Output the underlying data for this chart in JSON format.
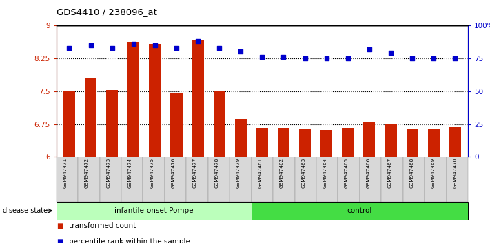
{
  "title": "GDS4410 / 238096_at",
  "categories": [
    "GSM947471",
    "GSM947472",
    "GSM947473",
    "GSM947474",
    "GSM947475",
    "GSM947476",
    "GSM947477",
    "GSM947478",
    "GSM947479",
    "GSM947461",
    "GSM947462",
    "GSM947463",
    "GSM947464",
    "GSM947465",
    "GSM947466",
    "GSM947467",
    "GSM947468",
    "GSM947469",
    "GSM947470"
  ],
  "bar_values": [
    7.5,
    7.8,
    7.52,
    8.62,
    8.58,
    7.46,
    8.68,
    7.5,
    6.85,
    6.65,
    6.65,
    6.63,
    6.62,
    6.65,
    6.8,
    6.75,
    6.63,
    6.63,
    6.68
  ],
  "dot_values": [
    83,
    85,
    83,
    86,
    85,
    83,
    88,
    83,
    80,
    76,
    76,
    75,
    75,
    75,
    82,
    79,
    75,
    75,
    75
  ],
  "bar_color": "#cc2200",
  "dot_color": "#0000cc",
  "ylim_left": [
    6,
    9
  ],
  "ylim_right": [
    0,
    100
  ],
  "yticks_left": [
    6,
    6.75,
    7.5,
    8.25,
    9
  ],
  "yticks_right": [
    0,
    25,
    50,
    75,
    100
  ],
  "ytick_labels_left": [
    "6",
    "6.75",
    "7.5",
    "8.25",
    "9"
  ],
  "ytick_labels_right": [
    "0",
    "25",
    "50",
    "75",
    "100%"
  ],
  "grid_lines": [
    6.75,
    7.5,
    8.25
  ],
  "group1_label": "infantile-onset Pompe",
  "group2_label": "control",
  "group1_count": 9,
  "group2_count": 10,
  "disease_state_label": "disease state",
  "legend1_label": "transformed count",
  "legend2_label": "percentile rank within the sample",
  "group1_color": "#bbffbb",
  "group2_color": "#44dd44",
  "tickbox_color": "#d8d8d8",
  "bar_bottom": 6.0
}
